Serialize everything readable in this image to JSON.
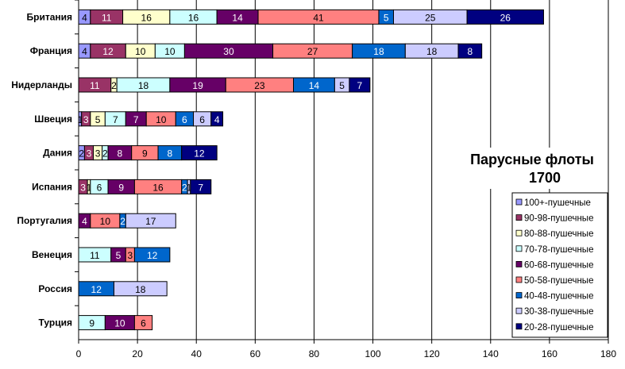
{
  "chart_data": {
    "type": "bar",
    "orientation": "horizontal",
    "stacked": true,
    "title": "Парусные флоты",
    "subtitle": "1700",
    "xlabel": "",
    "ylabel": "",
    "xlim": [
      0,
      180
    ],
    "xticks": [
      0,
      20,
      40,
      60,
      80,
      100,
      120,
      140,
      160,
      180
    ],
    "grid": true,
    "legend_position": "right",
    "categories": [
      "Британия",
      "Франция",
      "Нидерланды",
      "Швеция",
      "Дания",
      "Испания",
      "Португалия",
      "Венеция",
      "Россия",
      "Турция"
    ],
    "series": [
      {
        "name": "100+-пушечные",
        "color": "#9999ff",
        "values": [
          4,
          4,
          0,
          1,
          2,
          0,
          0,
          0,
          0,
          0
        ]
      },
      {
        "name": "90-98-пушечные",
        "color": "#993366",
        "values": [
          11,
          12,
          11,
          3,
          3,
          3,
          0,
          0,
          0,
          0
        ]
      },
      {
        "name": "80-88-пушечные",
        "color": "#ffffcc",
        "values": [
          16,
          10,
          2,
          5,
          3,
          1,
          0,
          0,
          0,
          0
        ]
      },
      {
        "name": "70-78-пушечные",
        "color": "#ccffff",
        "values": [
          16,
          10,
          18,
          7,
          2,
          6,
          0,
          11,
          0,
          9
        ]
      },
      {
        "name": "60-68-пушечные",
        "color": "#660066",
        "values": [
          14,
          30,
          19,
          7,
          8,
          9,
          4,
          5,
          0,
          10
        ]
      },
      {
        "name": "50-58-пушечные",
        "color": "#ff8080",
        "values": [
          41,
          27,
          23,
          10,
          9,
          16,
          10,
          3,
          0,
          6
        ]
      },
      {
        "name": "40-48-пушечные",
        "color": "#0066cc",
        "values": [
          5,
          18,
          14,
          6,
          8,
          2,
          2,
          12,
          12,
          0
        ]
      },
      {
        "name": "30-38-пушечные",
        "color": "#ccccff",
        "values": [
          25,
          18,
          5,
          6,
          0,
          1,
          17,
          0,
          18,
          0
        ]
      },
      {
        "name": "20-28-пушечные",
        "color": "#000080",
        "values": [
          26,
          8,
          7,
          4,
          12,
          7,
          0,
          0,
          0,
          0
        ]
      }
    ]
  }
}
